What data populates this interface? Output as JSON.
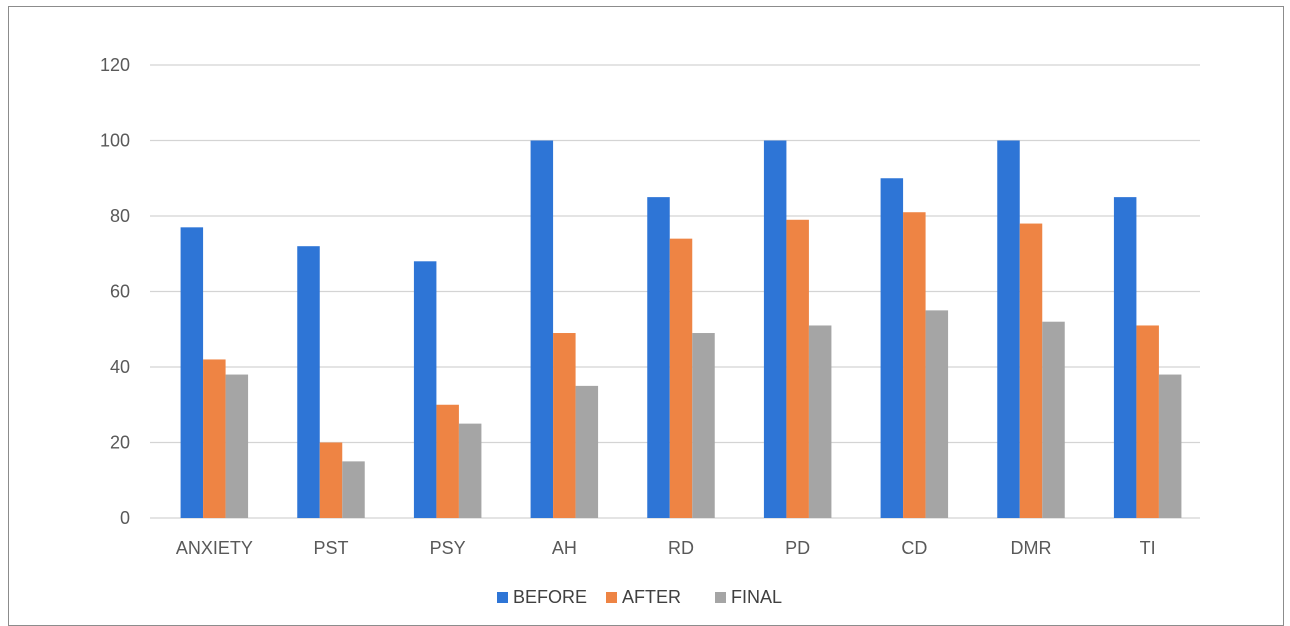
{
  "chart_data": {
    "type": "bar",
    "categories": [
      "ANXIETY",
      "PST",
      "PSY",
      "AH",
      "RD",
      "PD",
      "CD",
      "DMR",
      "TI"
    ],
    "series": [
      {
        "name": "BEFORE",
        "color": "#2e75d6",
        "values": [
          77,
          72,
          68,
          100,
          85,
          100,
          90,
          100,
          85
        ]
      },
      {
        "name": "AFTER",
        "color": "#ee8444",
        "values": [
          42,
          20,
          30,
          49,
          74,
          79,
          81,
          78,
          51
        ]
      },
      {
        "name": "FINAL",
        "color": "#a5a5a5",
        "values": [
          38,
          15,
          25,
          35,
          49,
          51,
          55,
          52,
          38
        ]
      }
    ],
    "y_ticks": [
      "0",
      "20",
      "40",
      "60",
      "80",
      "100",
      "120"
    ],
    "ylim": [
      0,
      120
    ],
    "grid": true,
    "legend_position": "bottom"
  }
}
